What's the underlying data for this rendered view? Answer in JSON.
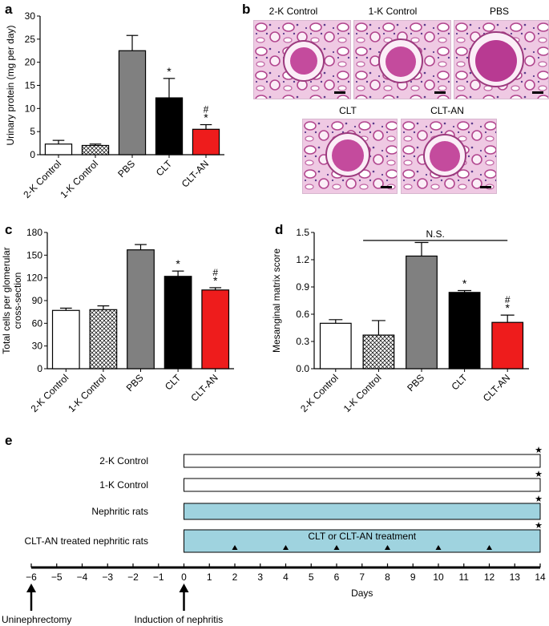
{
  "panel_labels": [
    "a",
    "b",
    "c",
    "d",
    "e"
  ],
  "micrographs": [
    {
      "label": "2-K Control"
    },
    {
      "label": "1-K Control"
    },
    {
      "label": "PBS"
    },
    {
      "label": "CLT"
    },
    {
      "label": "CLT-AN"
    }
  ],
  "colors": {
    "two_k": "#ffffff",
    "one_k": "hatched",
    "pbs": "#808080",
    "clt": "#000000",
    "clt_an": "#ee1c1c",
    "timeline_bar": "#9fd3df"
  },
  "chart_data": [
    {
      "id": "a",
      "type": "bar",
      "categories": [
        "2-K Control",
        "1-K Control",
        "PBS",
        "CLT",
        "CLT-AN"
      ],
      "values": [
        2.3,
        2.0,
        22.5,
        12.3,
        5.5
      ],
      "errors": [
        0.8,
        0.3,
        3.3,
        4.2,
        1.0
      ],
      "annotations": [
        "",
        "",
        "",
        "*",
        "#\n*"
      ],
      "ylabel": "Urinary protein (mg per day)",
      "ylim": [
        0,
        30
      ],
      "yticks": [
        0,
        5,
        10,
        15,
        20,
        25,
        30
      ]
    },
    {
      "id": "c",
      "type": "bar",
      "categories": [
        "2-K Control",
        "1-K Control",
        "PBS",
        "CLT",
        "CLT-AN"
      ],
      "values": [
        77,
        78,
        157,
        122,
        104
      ],
      "errors": [
        3,
        5,
        7,
        7,
        3
      ],
      "annotations": [
        "",
        "",
        "",
        "*",
        "#\n*"
      ],
      "ylabel": "Total cells per glomerular\ncross-section",
      "ylim": [
        0,
        180
      ],
      "yticks": [
        0,
        30,
        60,
        90,
        120,
        150,
        180
      ]
    },
    {
      "id": "d",
      "type": "bar",
      "categories": [
        "2-K Control",
        "1-K Control",
        "PBS",
        "CLT",
        "CLT-AN"
      ],
      "values": [
        0.5,
        0.37,
        1.24,
        0.84,
        0.51
      ],
      "errors": [
        0.04,
        0.16,
        0.15,
        0.02,
        0.08
      ],
      "annotations": [
        "",
        "",
        "",
        "*",
        "#\n*"
      ],
      "bracket": {
        "from": "1-K Control",
        "to": "CLT-AN",
        "label": "N.S."
      },
      "ylabel": "Mesanginal matrix score",
      "ylim": [
        0,
        1.5
      ],
      "yticks": [
        "0.0",
        "0.3",
        "0.6",
        "0.9",
        "1.2",
        "1.5"
      ]
    }
  ],
  "timeline": {
    "rows": [
      {
        "label": "2-K Control",
        "fill": "#ffffff",
        "end_mark": "★",
        "bar_text": ""
      },
      {
        "label": "1-K Control",
        "fill": "#ffffff",
        "end_mark": "★",
        "bar_text": ""
      },
      {
        "label": "Nephritic rats",
        "fill": "#9fd3df",
        "end_mark": "★",
        "bar_text": ""
      },
      {
        "label": "CLT-AN treated nephritic rats",
        "fill": "#9fd3df",
        "end_mark": "★",
        "bar_text": "CLT or CLT-AN treatment"
      }
    ],
    "bar_start_day": 0,
    "bar_end_day": 14,
    "treatment_days": [
      2,
      4,
      6,
      8,
      10,
      12
    ],
    "axis_ticks": [
      "−6",
      "−5",
      "−4",
      "−3",
      "−2",
      "−1",
      "0",
      "1",
      "2",
      "3",
      "4",
      "5",
      "6",
      "7",
      "8",
      "9",
      "10",
      "11",
      "12",
      "13",
      "14"
    ],
    "axis_label": "Days",
    "events": [
      {
        "day": -6,
        "label": "Uninephrectomy"
      },
      {
        "day": 0,
        "label": "Induction of nephritis"
      }
    ]
  }
}
